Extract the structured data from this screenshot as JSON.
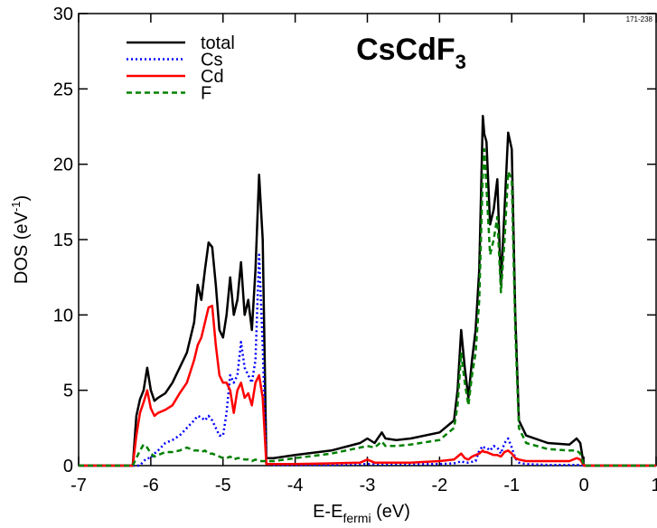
{
  "chart_data": {
    "type": "line",
    "title": {
      "base": "CsCdF",
      "sub": "3"
    },
    "xlabel": {
      "base": "E-E",
      "sub": "fermi",
      "after": " (eV)"
    },
    "ylabel": {
      "base": "DOS (eV",
      "sup": "-1",
      "after": ")"
    },
    "annotation": "171-238",
    "x": [
      -7,
      -6.25,
      -6.2,
      -6.15,
      -6.1,
      -6.05,
      -6.0,
      -5.95,
      -5.9,
      -5.8,
      -5.7,
      -5.6,
      -5.5,
      -5.4,
      -5.35,
      -5.3,
      -5.25,
      -5.2,
      -5.15,
      -5.1,
      -5.05,
      -5.0,
      -4.95,
      -4.9,
      -4.85,
      -4.8,
      -4.75,
      -4.7,
      -4.65,
      -4.6,
      -4.55,
      -4.5,
      -4.45,
      -4.4,
      -4.3,
      -4.0,
      -3.5,
      -3.1,
      -3.0,
      -2.9,
      -2.8,
      -2.75,
      -2.6,
      -2.4,
      -2.0,
      -1.8,
      -1.75,
      -1.7,
      -1.65,
      -1.6,
      -1.55,
      -1.5,
      -1.45,
      -1.4,
      -1.38,
      -1.35,
      -1.3,
      -1.25,
      -1.2,
      -1.15,
      -1.1,
      -1.05,
      -1.0,
      -0.95,
      -0.9,
      -0.8,
      -0.5,
      -0.2,
      -0.1,
      -0.05,
      0,
      0.05,
      1
    ],
    "series": [
      {
        "name": "total",
        "color": "#000000",
        "dash": "solid",
        "values": [
          0,
          0,
          3.3,
          4.4,
          5.0,
          6.5,
          5.0,
          4.3,
          4.5,
          4.8,
          5.5,
          6.5,
          7.5,
          9.5,
          12.0,
          11.0,
          13.0,
          14.8,
          14.5,
          12.0,
          9.0,
          8.5,
          10.0,
          12.5,
          10.0,
          11.0,
          13.5,
          10.0,
          11.0,
          9.0,
          13.0,
          19.3,
          15.0,
          0.5,
          0.5,
          0.7,
          1.0,
          1.5,
          1.8,
          1.5,
          2.2,
          1.8,
          1.7,
          1.8,
          2.2,
          3.0,
          5.0,
          9.0,
          6.5,
          4.5,
          7.0,
          9.0,
          13.0,
          23.2,
          22.0,
          21.5,
          16.0,
          17.0,
          19.0,
          12.0,
          17.0,
          22.1,
          21.0,
          10.0,
          3.0,
          2.0,
          1.5,
          1.4,
          1.8,
          1.5,
          0,
          0,
          0
        ]
      },
      {
        "name": "Cs",
        "color": "#0000ff",
        "dash": "dotted",
        "values": [
          0,
          0,
          0,
          0,
          0.3,
          0.5,
          0.5,
          0.8,
          1.0,
          1.5,
          1.7,
          2.0,
          2.5,
          3.0,
          3.3,
          3.2,
          3.0,
          3.3,
          3.0,
          2.5,
          2.0,
          2.0,
          3.5,
          6.0,
          5.5,
          6.0,
          8.2,
          6.5,
          6.0,
          5.5,
          7.0,
          14.0,
          8.0,
          0.1,
          0.05,
          0.05,
          0.05,
          0.1,
          0.1,
          0.1,
          0.1,
          0.1,
          0.1,
          0.1,
          0.1,
          0.15,
          0.2,
          0.3,
          0.2,
          0.2,
          0.25,
          0.3,
          1.0,
          1.3,
          1.2,
          1.2,
          1.0,
          1.3,
          1.2,
          0.8,
          1.5,
          1.8,
          1.2,
          0.5,
          0.2,
          0.1,
          0.05,
          0.05,
          0.05,
          0.05,
          0,
          0,
          0
        ]
      },
      {
        "name": "Cd",
        "color": "#ff0000",
        "dash": "solid",
        "values": [
          0,
          0,
          2.0,
          3.5,
          4.2,
          5.0,
          3.8,
          3.3,
          3.5,
          3.7,
          4.0,
          4.8,
          5.5,
          7.0,
          8.0,
          8.5,
          9.5,
          10.5,
          10.6,
          8.0,
          6.0,
          5.5,
          5.5,
          5.0,
          3.5,
          5.0,
          5.5,
          4.5,
          4.8,
          4.0,
          5.5,
          6.0,
          4.5,
          0.1,
          0.1,
          0.1,
          0.15,
          0.2,
          0.4,
          0.2,
          0.2,
          0.2,
          0.2,
          0.2,
          0.3,
          0.4,
          0.6,
          0.8,
          0.5,
          0.4,
          0.6,
          0.7,
          0.8,
          1.0,
          0.9,
          0.9,
          0.8,
          0.7,
          0.7,
          0.6,
          0.9,
          1.0,
          0.8,
          0.5,
          0.4,
          0.3,
          0.3,
          0.3,
          0.5,
          0.4,
          0,
          0,
          0
        ]
      },
      {
        "name": "F",
        "color": "#008000",
        "dash": "dashed",
        "values": [
          0,
          0,
          0.5,
          1.0,
          1.4,
          1.2,
          0.8,
          0.6,
          0.7,
          0.9,
          0.9,
          1.0,
          1.2,
          1.0,
          1.0,
          0.9,
          1.0,
          0.8,
          0.8,
          0.7,
          0.6,
          0.5,
          0.5,
          0.6,
          0.4,
          0.5,
          0.5,
          0.4,
          0.4,
          0.3,
          0.4,
          0.3,
          0.3,
          0.3,
          0.3,
          0.5,
          0.8,
          1.2,
          1.3,
          1.2,
          1.6,
          1.3,
          1.3,
          1.4,
          1.7,
          2.5,
          4.0,
          7.5,
          5.5,
          4.0,
          6.0,
          7.5,
          11.0,
          19.5,
          21.0,
          18.5,
          14.0,
          15.0,
          16.5,
          11.5,
          15.0,
          19.5,
          19.0,
          9.0,
          2.5,
          1.5,
          1.1,
          1.0,
          1.0,
          0.8,
          0,
          0,
          0
        ]
      }
    ],
    "xlim": [
      -7,
      1
    ],
    "xticks": [
      -7,
      -6,
      -5,
      -4,
      -3,
      -2,
      -1,
      0,
      1
    ],
    "ylim": [
      0,
      30
    ],
    "yticks": [
      0,
      5,
      10,
      15,
      20,
      25,
      30
    ],
    "grid": false,
    "legend": "upper-left"
  }
}
